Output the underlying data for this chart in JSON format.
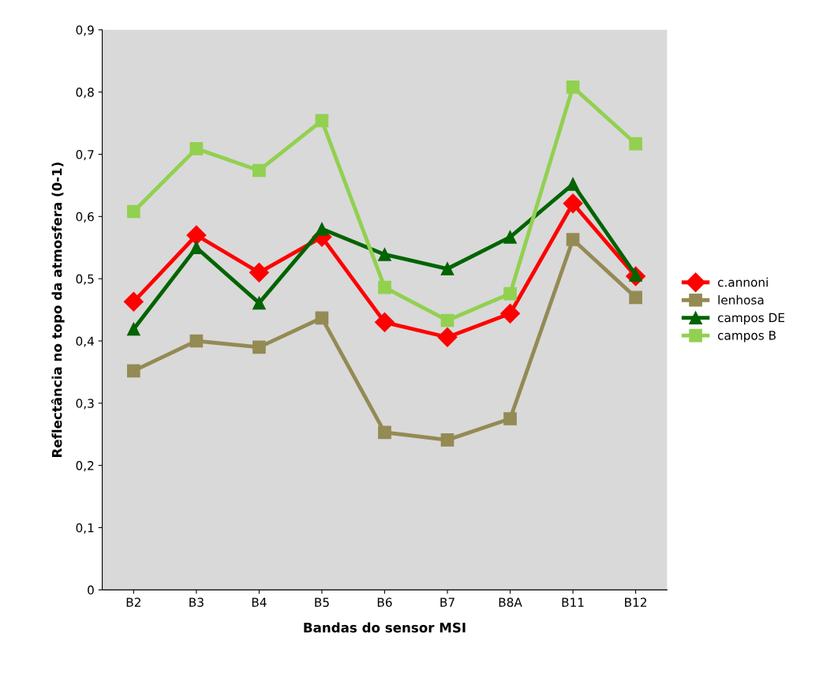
{
  "chart_data": {
    "type": "line",
    "xlabel": "Bandas do sensor MSI",
    "ylabel": "Reflectância no topo da atmosfera (0-1)",
    "categories": [
      "B2",
      "B3",
      "B4",
      "B5",
      "B6",
      "B7",
      "B8A",
      "B11",
      "B12"
    ],
    "series": [
      {
        "name": "c.annoni",
        "color": "#ff0000",
        "marker": "diamond",
        "values": [
          0.463,
          0.57,
          0.51,
          0.567,
          0.43,
          0.406,
          0.444,
          0.621,
          0.504
        ]
      },
      {
        "name": "lenhosa",
        "color": "#948a54",
        "marker": "square",
        "values": [
          0.352,
          0.4,
          0.39,
          0.437,
          0.253,
          0.241,
          0.275,
          0.563,
          0.47
        ]
      },
      {
        "name": "campos DE",
        "color": "#006400",
        "marker": "triangle",
        "values": [
          0.419,
          0.55,
          0.461,
          0.58,
          0.539,
          0.516,
          0.567,
          0.652,
          0.506
        ]
      },
      {
        "name": "campos B",
        "color": "#92d050",
        "marker": "square",
        "values": [
          0.608,
          0.709,
          0.674,
          0.754,
          0.486,
          0.433,
          0.476,
          0.808,
          0.717
        ]
      }
    ],
    "ylim": [
      0,
      0.9
    ],
    "yticks": [
      0,
      {
        "value": 0.1,
        "label": "0,1"
      },
      {
        "value": 0.2,
        "label": "0,2"
      },
      {
        "value": 0.3,
        "label": "0,3"
      },
      {
        "value": 0.4,
        "label": "0,4"
      },
      {
        "value": 0.5,
        "label": "0,5"
      },
      {
        "value": 0.6,
        "label": "0,6"
      },
      {
        "value": 0.7,
        "label": "0,7"
      },
      {
        "value": 0.8,
        "label": "0,8"
      },
      {
        "value": 0.9,
        "label": "0,9"
      }
    ],
    "grid": false,
    "legend": "right",
    "line_style": "solid"
  }
}
